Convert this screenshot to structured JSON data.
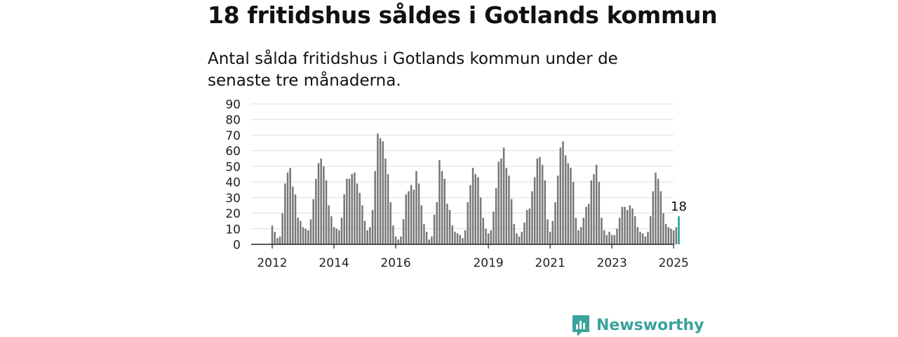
{
  "header": {
    "title": "18 fritidshus såldes i Gotlands kommun",
    "subtitle": "Antal sålda fritidshus i Gotlands kommun under de senaste tre månaderna."
  },
  "brand": {
    "name": "Newsworthy",
    "icon": "bar-chart-logo-icon",
    "color": "#3aa39b"
  },
  "chart_data": {
    "type": "bar",
    "title": "18 fritidshus såldes i Gotlands kommun",
    "subtitle": "Antal sålda fritidshus i Gotlands kommun under de senaste tre månaderna.",
    "xlabel": "",
    "ylabel": "",
    "ylim": [
      0,
      90
    ],
    "yticks": [
      0,
      10,
      20,
      30,
      40,
      50,
      60,
      70,
      80,
      90
    ],
    "xtick_labels": [
      "2012",
      "2014",
      "2016",
      "2019",
      "2021",
      "2023",
      "2025"
    ],
    "grid": true,
    "bar_color": "#777777",
    "highlight_color": "#1a9e9e",
    "highlight_label": "18",
    "x": [
      "2012-01",
      "2012-02",
      "2012-03",
      "2012-04",
      "2012-05",
      "2012-06",
      "2012-07",
      "2012-08",
      "2012-09",
      "2012-10",
      "2012-11",
      "2012-12",
      "2013-01",
      "2013-02",
      "2013-03",
      "2013-04",
      "2013-05",
      "2013-06",
      "2013-07",
      "2013-08",
      "2013-09",
      "2013-10",
      "2013-11",
      "2013-12",
      "2014-01",
      "2014-02",
      "2014-03",
      "2014-04",
      "2014-05",
      "2014-06",
      "2014-07",
      "2014-08",
      "2014-09",
      "2014-10",
      "2014-11",
      "2014-12",
      "2015-01",
      "2015-02",
      "2015-03",
      "2015-04",
      "2015-05",
      "2015-06",
      "2015-07",
      "2015-08",
      "2015-09",
      "2015-10",
      "2015-11",
      "2015-12",
      "2016-01",
      "2016-02",
      "2016-03",
      "2016-04",
      "2016-05",
      "2016-06",
      "2016-07",
      "2016-08",
      "2016-09",
      "2016-10",
      "2016-11",
      "2016-12",
      "2017-01",
      "2017-02",
      "2017-03",
      "2017-04",
      "2017-05",
      "2017-06",
      "2017-07",
      "2017-08",
      "2017-09",
      "2017-10",
      "2017-11",
      "2017-12",
      "2018-01",
      "2018-02",
      "2018-03",
      "2018-04",
      "2018-05",
      "2018-06",
      "2018-07",
      "2018-08",
      "2018-09",
      "2018-10",
      "2018-11",
      "2018-12",
      "2019-01",
      "2019-02",
      "2019-03",
      "2019-04",
      "2019-05",
      "2019-06",
      "2019-07",
      "2019-08",
      "2019-09",
      "2019-10",
      "2019-11",
      "2019-12",
      "2020-01",
      "2020-02",
      "2020-03",
      "2020-04",
      "2020-05",
      "2020-06",
      "2020-07",
      "2020-08",
      "2020-09",
      "2020-10",
      "2020-11",
      "2020-12",
      "2021-01",
      "2021-02",
      "2021-03",
      "2021-04",
      "2021-05",
      "2021-06",
      "2021-07",
      "2021-08",
      "2021-09",
      "2021-10",
      "2021-11",
      "2021-12",
      "2022-01",
      "2022-02",
      "2022-03",
      "2022-04",
      "2022-05",
      "2022-06",
      "2022-07",
      "2022-08",
      "2022-09",
      "2022-10",
      "2022-11",
      "2022-12",
      "2023-01",
      "2023-02",
      "2023-03",
      "2023-04",
      "2023-05",
      "2023-06",
      "2023-07",
      "2023-08",
      "2023-09",
      "2023-10",
      "2023-11",
      "2023-12",
      "2024-01",
      "2024-02",
      "2024-03",
      "2024-04",
      "2024-05",
      "2024-06",
      "2024-07",
      "2024-08",
      "2024-09",
      "2024-10",
      "2024-11",
      "2024-12",
      "2025-01",
      "2025-02"
    ],
    "values": [
      12,
      8,
      4,
      5,
      20,
      39,
      46,
      49,
      37,
      32,
      17,
      15,
      11,
      10,
      9,
      16,
      29,
      42,
      52,
      55,
      50,
      41,
      25,
      18,
      11,
      10,
      9,
      17,
      32,
      42,
      42,
      45,
      46,
      39,
      33,
      25,
      15,
      9,
      11,
      22,
      47,
      71,
      68,
      66,
      55,
      45,
      27,
      12,
      5,
      3,
      5,
      16,
      32,
      34,
      38,
      35,
      47,
      39,
      25,
      13,
      8,
      3,
      5,
      19,
      27,
      54,
      47,
      42,
      26,
      22,
      12,
      8,
      7,
      6,
      4,
      9,
      27,
      38,
      49,
      45,
      43,
      30,
      17,
      10,
      7,
      9,
      21,
      36,
      53,
      55,
      62,
      49,
      44,
      29,
      13,
      7,
      5,
      8,
      14,
      22,
      23,
      34,
      43,
      55,
      56,
      51,
      41,
      16,
      8,
      15,
      27,
      44,
      62,
      66,
      57,
      52,
      49,
      40,
      17,
      9,
      11,
      17,
      24,
      26,
      41,
      45,
      51,
      40,
      17,
      9,
      6,
      8,
      6,
      6,
      10,
      17,
      24,
      24,
      22,
      25,
      23,
      18,
      11,
      8,
      7,
      5,
      8,
      18,
      34,
      46,
      42,
      34,
      20,
      13,
      11,
      10,
      9,
      11
    ],
    "highlight": {
      "x": "2025-03",
      "value": 18
    }
  }
}
